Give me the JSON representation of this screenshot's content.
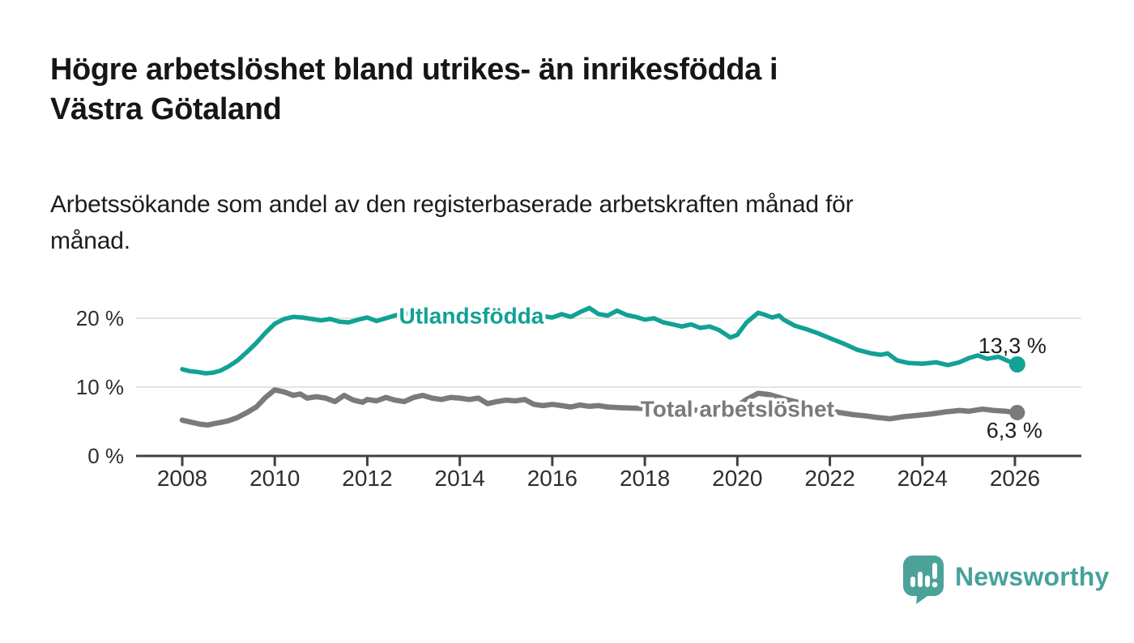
{
  "header": {
    "title": "Högre arbetslöshet bland utrikes- än inrikesfödda i Västra Götaland",
    "title_lines": [
      "Högre arbetslöshet bland utrikes- än inrikesfödda i",
      "Västra Götaland"
    ],
    "subtitle": "Arbetssökande som andel av den registerbaserade arbetskraften månad för månad.",
    "subtitle_lines": [
      "Arbetssökande som andel av den registerbaserade arbetskraften månad för",
      "månad."
    ]
  },
  "footer": {
    "brand": "Newsworthy",
    "logo_color": "#4ba29b"
  },
  "colors": {
    "series_foreign_born": "#12a195",
    "series_total": "#7a7a7a",
    "axis": "#404040",
    "gridline": "#dcdcdc",
    "tick_label": "#2e2e2e",
    "annotation": "#1d1d1d"
  },
  "chart_data": {
    "type": "line",
    "title": "Högre arbetslöshet bland utrikes- än inrikesfödda i Västra Götaland",
    "subtitle": "Arbetssökande som andel av den registerbaserade arbetskraften månad för månad.",
    "xlabel": "",
    "ylabel": "",
    "xlim": [
      2008,
      2027.3
    ],
    "ylim": [
      0,
      22
    ],
    "grid": "horizontal",
    "legend": "inline-labels",
    "yticks": [
      0,
      10,
      20
    ],
    "ytick_labels": [
      "0 %",
      "10 %",
      "20 %"
    ],
    "xticks": [
      2008,
      2010,
      2012,
      2014,
      2016,
      2018,
      2020,
      2022,
      2024,
      2026
    ],
    "series": [
      {
        "id": "utlandsfodda",
        "name": "Utlandsfödda",
        "color": "#12a195",
        "stroke_width": 5.5,
        "end_dot_r": 10,
        "inline_label": {
          "x": 2014.25,
          "y": 19.25
        },
        "end_label": {
          "text": "13,3 %",
          "dx": 36,
          "dy": -14
        },
        "end_value": 13.3,
        "points": [
          [
            2008.0,
            12.6
          ],
          [
            2008.17,
            12.3
          ],
          [
            2008.33,
            12.2
          ],
          [
            2008.5,
            12.0
          ],
          [
            2008.67,
            12.1
          ],
          [
            2008.83,
            12.4
          ],
          [
            2009.0,
            13.0
          ],
          [
            2009.2,
            13.9
          ],
          [
            2009.4,
            15.1
          ],
          [
            2009.6,
            16.4
          ],
          [
            2009.8,
            17.9
          ],
          [
            2010.0,
            19.2
          ],
          [
            2010.2,
            19.9
          ],
          [
            2010.4,
            20.2
          ],
          [
            2010.6,
            20.1
          ],
          [
            2010.8,
            19.9
          ],
          [
            2011.0,
            19.7
          ],
          [
            2011.2,
            19.9
          ],
          [
            2011.4,
            19.5
          ],
          [
            2011.6,
            19.4
          ],
          [
            2011.8,
            19.8
          ],
          [
            2012.0,
            20.1
          ],
          [
            2012.2,
            19.6
          ],
          [
            2012.4,
            20.0
          ],
          [
            2012.6,
            20.4
          ],
          [
            2012.8,
            20.8
          ],
          [
            2013.0,
            20.4
          ],
          [
            2013.3,
            20.6
          ],
          [
            2013.6,
            20.3
          ],
          [
            2013.9,
            20.5
          ],
          [
            2014.2,
            20.2
          ],
          [
            2014.5,
            20.4
          ],
          [
            2014.8,
            20.1
          ],
          [
            2015.1,
            20.3
          ],
          [
            2015.4,
            20.2
          ],
          [
            2015.7,
            20.4
          ],
          [
            2016.0,
            20.1
          ],
          [
            2016.2,
            20.6
          ],
          [
            2016.4,
            20.2
          ],
          [
            2016.6,
            20.9
          ],
          [
            2016.8,
            21.5
          ],
          [
            2017.0,
            20.6
          ],
          [
            2017.2,
            20.4
          ],
          [
            2017.4,
            21.1
          ],
          [
            2017.6,
            20.5
          ],
          [
            2017.8,
            20.2
          ],
          [
            2018.0,
            19.8
          ],
          [
            2018.2,
            20.0
          ],
          [
            2018.4,
            19.4
          ],
          [
            2018.6,
            19.1
          ],
          [
            2018.8,
            18.8
          ],
          [
            2019.0,
            19.1
          ],
          [
            2019.2,
            18.6
          ],
          [
            2019.4,
            18.8
          ],
          [
            2019.6,
            18.3
          ],
          [
            2019.85,
            17.2
          ],
          [
            2020.0,
            17.6
          ],
          [
            2020.2,
            19.4
          ],
          [
            2020.45,
            20.8
          ],
          [
            2020.6,
            20.5
          ],
          [
            2020.75,
            20.1
          ],
          [
            2020.9,
            20.4
          ],
          [
            2021.0,
            19.8
          ],
          [
            2021.25,
            18.9
          ],
          [
            2021.5,
            18.4
          ],
          [
            2021.75,
            17.8
          ],
          [
            2022.0,
            17.1
          ],
          [
            2022.3,
            16.3
          ],
          [
            2022.6,
            15.4
          ],
          [
            2022.9,
            14.9
          ],
          [
            2023.1,
            14.7
          ],
          [
            2023.25,
            14.9
          ],
          [
            2023.45,
            13.9
          ],
          [
            2023.7,
            13.5
          ],
          [
            2024.0,
            13.4
          ],
          [
            2024.3,
            13.6
          ],
          [
            2024.55,
            13.2
          ],
          [
            2024.8,
            13.6
          ],
          [
            2025.0,
            14.2
          ],
          [
            2025.2,
            14.6
          ],
          [
            2025.4,
            14.1
          ],
          [
            2025.65,
            14.4
          ],
          [
            2025.85,
            13.8
          ],
          [
            2026.05,
            13.3
          ]
        ]
      },
      {
        "id": "total-arbetsloshet",
        "name": "Total arbetslöshet",
        "color": "#7a7a7a",
        "stroke_width": 6.5,
        "end_dot_r": 9.5,
        "inline_label": {
          "x": 2020.0,
          "y": 5.7
        },
        "end_label": {
          "text": "6,3 %",
          "dx": 31,
          "dy": 31
        },
        "end_value": 6.3,
        "points": [
          [
            2008.0,
            5.2
          ],
          [
            2008.2,
            4.9
          ],
          [
            2008.4,
            4.6
          ],
          [
            2008.55,
            4.5
          ],
          [
            2008.7,
            4.7
          ],
          [
            2008.85,
            4.9
          ],
          [
            2009.0,
            5.1
          ],
          [
            2009.2,
            5.6
          ],
          [
            2009.4,
            6.3
          ],
          [
            2009.6,
            7.1
          ],
          [
            2009.8,
            8.5
          ],
          [
            2010.0,
            9.6
          ],
          [
            2010.2,
            9.3
          ],
          [
            2010.4,
            8.8
          ],
          [
            2010.55,
            9.0
          ],
          [
            2010.7,
            8.4
          ],
          [
            2010.9,
            8.6
          ],
          [
            2011.1,
            8.4
          ],
          [
            2011.3,
            7.9
          ],
          [
            2011.5,
            8.8
          ],
          [
            2011.7,
            8.1
          ],
          [
            2011.9,
            7.8
          ],
          [
            2012.0,
            8.2
          ],
          [
            2012.2,
            8.0
          ],
          [
            2012.4,
            8.5
          ],
          [
            2012.6,
            8.1
          ],
          [
            2012.8,
            7.9
          ],
          [
            2013.0,
            8.5
          ],
          [
            2013.2,
            8.8
          ],
          [
            2013.4,
            8.4
          ],
          [
            2013.6,
            8.2
          ],
          [
            2013.8,
            8.5
          ],
          [
            2014.0,
            8.4
          ],
          [
            2014.2,
            8.2
          ],
          [
            2014.4,
            8.4
          ],
          [
            2014.6,
            7.6
          ],
          [
            2014.8,
            7.9
          ],
          [
            2015.0,
            8.1
          ],
          [
            2015.2,
            8.0
          ],
          [
            2015.4,
            8.2
          ],
          [
            2015.6,
            7.5
          ],
          [
            2015.8,
            7.3
          ],
          [
            2016.0,
            7.5
          ],
          [
            2016.2,
            7.3
          ],
          [
            2016.4,
            7.1
          ],
          [
            2016.6,
            7.4
          ],
          [
            2016.8,
            7.2
          ],
          [
            2017.0,
            7.3
          ],
          [
            2017.2,
            7.1
          ],
          [
            2017.5,
            7.0
          ],
          [
            2018.0,
            6.9
          ],
          [
            2018.5,
            6.8
          ],
          [
            2019.0,
            6.7
          ],
          [
            2019.5,
            6.5
          ],
          [
            2019.9,
            6.8
          ],
          [
            2020.2,
            8.2
          ],
          [
            2020.45,
            9.1
          ],
          [
            2020.7,
            8.9
          ],
          [
            2021.0,
            8.3
          ],
          [
            2021.3,
            7.8
          ],
          [
            2021.6,
            7.3
          ],
          [
            2021.9,
            6.8
          ],
          [
            2022.2,
            6.3
          ],
          [
            2022.5,
            6.0
          ],
          [
            2022.8,
            5.8
          ],
          [
            2023.0,
            5.6
          ],
          [
            2023.3,
            5.4
          ],
          [
            2023.6,
            5.7
          ],
          [
            2023.9,
            5.9
          ],
          [
            2024.2,
            6.1
          ],
          [
            2024.5,
            6.4
          ],
          [
            2024.8,
            6.6
          ],
          [
            2025.0,
            6.5
          ],
          [
            2025.3,
            6.8
          ],
          [
            2025.55,
            6.6
          ],
          [
            2025.8,
            6.5
          ],
          [
            2026.05,
            6.3
          ]
        ]
      }
    ]
  }
}
